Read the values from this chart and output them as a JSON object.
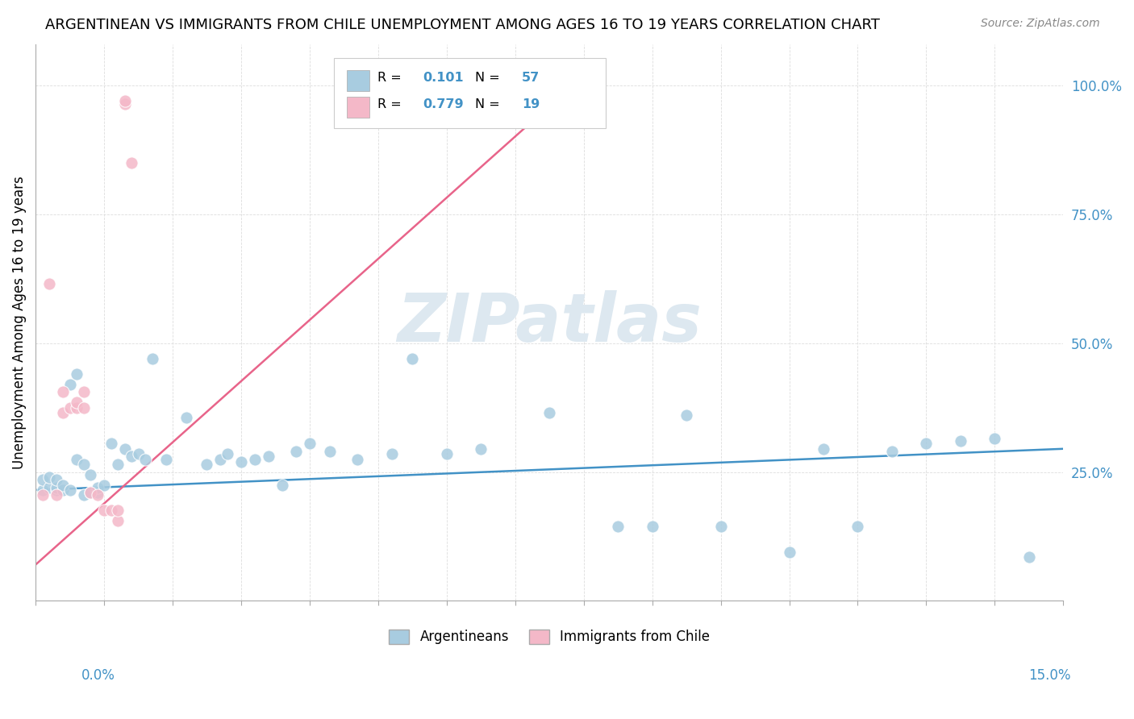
{
  "title": "ARGENTINEAN VS IMMIGRANTS FROM CHILE UNEMPLOYMENT AMONG AGES 16 TO 19 YEARS CORRELATION CHART",
  "source": "Source: ZipAtlas.com",
  "ylabel": "Unemployment Among Ages 16 to 19 years",
  "legend_label1": "Argentineans",
  "legend_label2": "Immigrants from Chile",
  "r1": 0.101,
  "n1": 57,
  "r2": 0.779,
  "n2": 19,
  "blue_color": "#a8cce0",
  "pink_color": "#f4b8c8",
  "blue_line_color": "#4292c6",
  "pink_line_color": "#e8648a",
  "ytick_color": "#4292c6",
  "xlim": [
    0.0,
    0.15
  ],
  "ylim": [
    0.0,
    1.08
  ],
  "blue_x": [
    0.001,
    0.001,
    0.002,
    0.002,
    0.003,
    0.003,
    0.003,
    0.004,
    0.004,
    0.005,
    0.005,
    0.006,
    0.006,
    0.007,
    0.007,
    0.008,
    0.008,
    0.009,
    0.009,
    0.01,
    0.011,
    0.012,
    0.013,
    0.014,
    0.015,
    0.016,
    0.017,
    0.019,
    0.022,
    0.025,
    0.027,
    0.028,
    0.03,
    0.032,
    0.034,
    0.036,
    0.038,
    0.04,
    0.043,
    0.047,
    0.052,
    0.055,
    0.06,
    0.065,
    0.075,
    0.085,
    0.09,
    0.095,
    0.1,
    0.11,
    0.115,
    0.12,
    0.125,
    0.13,
    0.135,
    0.14,
    0.145
  ],
  "blue_y": [
    0.215,
    0.235,
    0.22,
    0.24,
    0.215,
    0.22,
    0.235,
    0.215,
    0.225,
    0.215,
    0.42,
    0.44,
    0.275,
    0.205,
    0.265,
    0.21,
    0.245,
    0.21,
    0.22,
    0.225,
    0.305,
    0.265,
    0.295,
    0.28,
    0.285,
    0.275,
    0.47,
    0.275,
    0.355,
    0.265,
    0.275,
    0.285,
    0.27,
    0.275,
    0.28,
    0.225,
    0.29,
    0.305,
    0.29,
    0.275,
    0.285,
    0.47,
    0.285,
    0.295,
    0.365,
    0.145,
    0.145,
    0.36,
    0.145,
    0.095,
    0.295,
    0.145,
    0.29,
    0.305,
    0.31,
    0.315,
    0.085
  ],
  "pink_x": [
    0.001,
    0.002,
    0.003,
    0.004,
    0.004,
    0.005,
    0.006,
    0.006,
    0.007,
    0.007,
    0.008,
    0.009,
    0.01,
    0.011,
    0.012,
    0.012,
    0.013,
    0.013,
    0.014
  ],
  "pink_y": [
    0.205,
    0.615,
    0.205,
    0.365,
    0.405,
    0.375,
    0.375,
    0.385,
    0.375,
    0.405,
    0.21,
    0.205,
    0.175,
    0.175,
    0.155,
    0.175,
    0.965,
    0.97,
    0.85
  ],
  "blue_trend_x": [
    0.0,
    0.15
  ],
  "blue_trend_y": [
    0.215,
    0.295
  ],
  "pink_trend_x": [
    0.0,
    0.08
  ],
  "pink_trend_y": [
    0.07,
    1.02
  ],
  "watermark_text": "ZIPatlas",
  "watermark_color": "#dde8f0",
  "grid_color": "#dddddd"
}
